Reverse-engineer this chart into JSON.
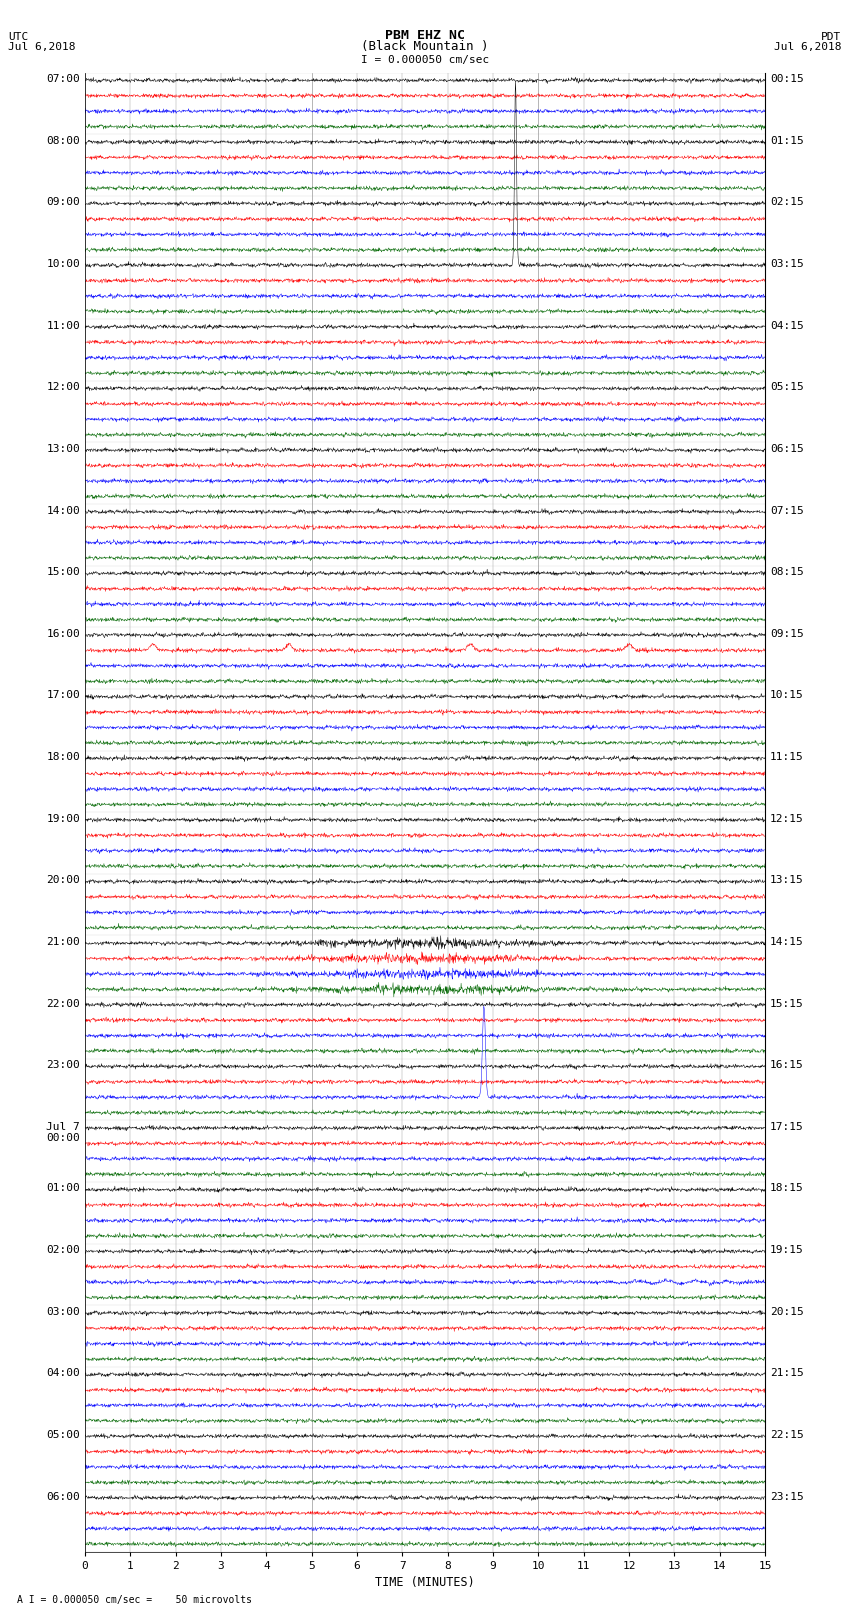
{
  "title_line1": "PBM EHZ NC",
  "title_line2": "(Black Mountain )",
  "scale_label": "I = 0.000050 cm/sec",
  "utc_label": "UTC\nJul 6,2018",
  "pdt_label": "PDT\nJul 6,2018",
  "xlabel": "TIME (MINUTES)",
  "footer_label": "A I = 0.000050 cm/sec =    50 microvolts",
  "left_times": [
    "07:00",
    "08:00",
    "09:00",
    "10:00",
    "11:00",
    "12:00",
    "13:00",
    "14:00",
    "15:00",
    "16:00",
    "17:00",
    "18:00",
    "19:00",
    "20:00",
    "21:00",
    "22:00",
    "23:00",
    "Jul 7\n00:00",
    "01:00",
    "02:00",
    "03:00",
    "04:00",
    "05:00",
    "06:00"
  ],
  "right_times": [
    "00:15",
    "01:15",
    "02:15",
    "03:15",
    "04:15",
    "05:15",
    "06:15",
    "07:15",
    "08:15",
    "09:15",
    "10:15",
    "11:15",
    "12:15",
    "13:15",
    "14:15",
    "15:15",
    "16:15",
    "17:15",
    "18:15",
    "19:15",
    "20:15",
    "21:15",
    "22:15",
    "23:15"
  ],
  "num_rows": 24,
  "minutes_per_row": 15,
  "traces_per_row": 4,
  "trace_colors": [
    "black",
    "red",
    "blue",
    "#006600"
  ],
  "bg_color": "#ffffff",
  "plot_bg_color": "#ffffff",
  "noise_amplitude": 0.06,
  "big_spike_row": 3,
  "big_spike_minute": 9.5,
  "big_spike_amplitude": 12.0,
  "grid_color": "#999999",
  "grid_major_color": "#999999",
  "vline_5min_color": "#999999",
  "label_fontsize": 8.0,
  "title_fontsize": 9.5
}
